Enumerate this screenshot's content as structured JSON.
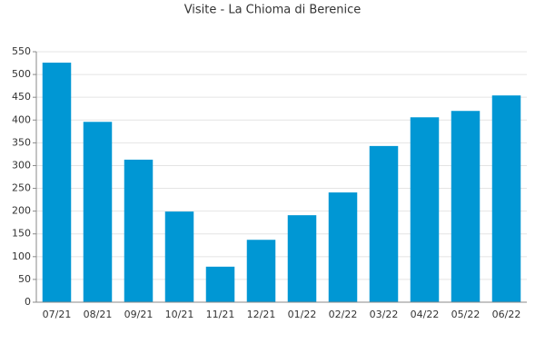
{
  "chart_data": {
    "type": "bar",
    "title": "Visite - La Chioma di Berenice",
    "categories": [
      "07/21",
      "08/21",
      "09/21",
      "10/21",
      "11/21",
      "12/21",
      "01/22",
      "02/22",
      "03/22",
      "04/22",
      "05/22",
      "06/22"
    ],
    "values": [
      526,
      396,
      313,
      199,
      78,
      137,
      191,
      241,
      343,
      406,
      420,
      454
    ],
    "color": "#0097d4",
    "ylim": [
      0,
      550
    ],
    "yticks": [
      0,
      50,
      100,
      150,
      200,
      250,
      300,
      350,
      400,
      450,
      500,
      550
    ],
    "grid": true
  }
}
